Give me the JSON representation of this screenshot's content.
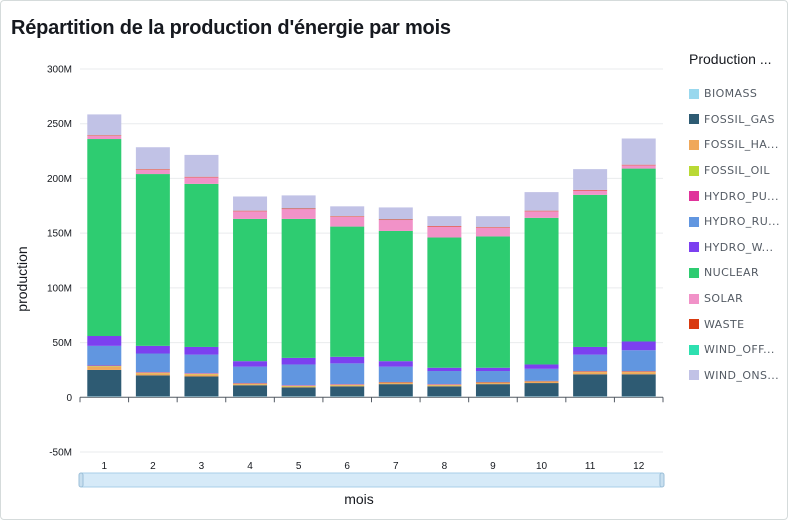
{
  "title": "Répartition de la production d'énergie par mois",
  "legend_title": "Production ...",
  "chart_data": {
    "type": "bar",
    "stacked": true,
    "xlabel": "mois",
    "ylabel": "production",
    "ylim": [
      -50000000,
      300000000
    ],
    "yticks": [
      300000000,
      250000000,
      200000000,
      150000000,
      100000000,
      50000000,
      0,
      -50000000
    ],
    "ytick_labels": [
      "300M",
      "250M",
      "200M",
      "150M",
      "100M",
      "50M",
      "0",
      "-50M"
    ],
    "grid": true,
    "legend_position": "right",
    "categories": [
      "1",
      "2",
      "3",
      "4",
      "5",
      "6",
      "7",
      "8",
      "9",
      "10",
      "11",
      "12"
    ],
    "series": [
      {
        "name": "BIOMASS",
        "legend_label": "BIOMASS",
        "color": "#99d8ee",
        "values": [
          1000000,
          1000000,
          1000000,
          1000000,
          1000000,
          1000000,
          1000000,
          1000000,
          1000000,
          1000000,
          1000000,
          1000000
        ]
      },
      {
        "name": "FOSSIL_GAS",
        "legend_label": "FOSSIL_GAS",
        "color": "#2e5b73",
        "values": [
          24000000,
          19000000,
          18000000,
          10000000,
          8000000,
          9000000,
          11000000,
          9000000,
          11000000,
          12000000,
          20000000,
          20000000
        ]
      },
      {
        "name": "FOSSIL_HARD_COAL",
        "legend_label": "FOSSIL_HA...",
        "color": "#f0a85a",
        "values": [
          3000000,
          2000000,
          2000000,
          1000000,
          1000000,
          1000000,
          1000000,
          1000000,
          1000000,
          1000000,
          2000000,
          2000000
        ]
      },
      {
        "name": "FOSSIL_OIL",
        "legend_label": "FOSSIL_OIL",
        "color": "#b9d935",
        "values": [
          500000,
          500000,
          500000,
          500000,
          500000,
          500000,
          500000,
          500000,
          500000,
          500000,
          500000,
          500000
        ]
      },
      {
        "name": "HYDRO_PUMPED_STORAGE",
        "legend_label": "HYDRO_PU...",
        "color": "#e0339b",
        "values": [
          500000,
          500000,
          500000,
          500000,
          500000,
          500000,
          500000,
          500000,
          500000,
          500000,
          500000,
          500000
        ]
      },
      {
        "name": "HYDRO_RUN_OF_RIVER",
        "legend_label": "HYDRO_RU...",
        "color": "#6196e0",
        "values": [
          18000000,
          17000000,
          17000000,
          15000000,
          19000000,
          19000000,
          14000000,
          12000000,
          10000000,
          11000000,
          15000000,
          19000000
        ]
      },
      {
        "name": "HYDRO_WATER_RESERVOIR",
        "legend_label": "HYDRO_W...",
        "color": "#7c40f0",
        "values": [
          9000000,
          7000000,
          7000000,
          5000000,
          6000000,
          6000000,
          5000000,
          3000000,
          3000000,
          4000000,
          7000000,
          8000000
        ]
      },
      {
        "name": "NUCLEAR",
        "legend_label": "NUCLEAR",
        "color": "#2ecc71",
        "values": [
          180000000,
          157000000,
          149000000,
          130000000,
          127000000,
          119000000,
          119000000,
          119000000,
          120000000,
          134000000,
          139000000,
          158000000
        ]
      },
      {
        "name": "SOLAR",
        "legend_label": "SOLAR",
        "color": "#f192c8",
        "values": [
          3000000,
          4000000,
          6000000,
          7000000,
          9000000,
          9000000,
          10000000,
          10000000,
          8000000,
          6000000,
          4000000,
          3000000
        ]
      },
      {
        "name": "WASTE",
        "legend_label": "WASTE",
        "color": "#d93a10",
        "values": [
          500000,
          500000,
          500000,
          500000,
          500000,
          500000,
          500000,
          500000,
          500000,
          500000,
          500000,
          500000
        ]
      },
      {
        "name": "WIND_OFFSHORE",
        "legend_label": "WIND_OFF...",
        "color": "#2ee0b0",
        "values": [
          0,
          0,
          0,
          0,
          0,
          0,
          0,
          0,
          0,
          0,
          0,
          0
        ]
      },
      {
        "name": "WIND_ONSHORE",
        "legend_label": "WIND_ONS...",
        "color": "#c1c2e6",
        "values": [
          19000000,
          20000000,
          20000000,
          13000000,
          12000000,
          9000000,
          11000000,
          9000000,
          10000000,
          17000000,
          19000000,
          24000000
        ]
      }
    ]
  }
}
